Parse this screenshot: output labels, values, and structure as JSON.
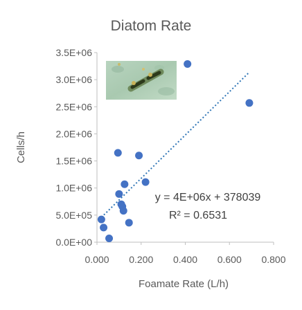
{
  "chart_data": {
    "type": "scatter",
    "title": "Diatom Rate",
    "xlabel": "Foamate Rate (L/h)",
    "ylabel": "Cells/h",
    "xlim": [
      0,
      0.8
    ],
    "ylim": [
      0,
      3500000
    ],
    "x_ticks": [
      "0.000",
      "0.200",
      "0.400",
      "0.600",
      "0.800"
    ],
    "y_ticks": [
      "0.0E+00",
      "5.0E+05",
      "1.0E+06",
      "1.5E+06",
      "2.0E+06",
      "2.5E+06",
      "3.0E+06",
      "3.5E+06"
    ],
    "grid": false,
    "legend": "none",
    "point_color": "#4472C4",
    "trendline_color": "#2E75B6",
    "points": [
      {
        "x": 0.02,
        "y": 420000
      },
      {
        "x": 0.03,
        "y": 270000
      },
      {
        "x": 0.055,
        "y": 70000
      },
      {
        "x": 0.095,
        "y": 1650000
      },
      {
        "x": 0.1,
        "y": 890000
      },
      {
        "x": 0.11,
        "y": 700000
      },
      {
        "x": 0.115,
        "y": 660000
      },
      {
        "x": 0.12,
        "y": 580000
      },
      {
        "x": 0.125,
        "y": 1070000
      },
      {
        "x": 0.145,
        "y": 360000
      },
      {
        "x": 0.19,
        "y": 1600000
      },
      {
        "x": 0.22,
        "y": 1110000
      },
      {
        "x": 0.41,
        "y": 3290000
      },
      {
        "x": 0.69,
        "y": 2570000
      }
    ],
    "trendline": {
      "type": "linear",
      "slope": 4000000,
      "intercept": 378039,
      "x_range": [
        0.02,
        0.69
      ],
      "equation_label": "y = 4E+06x + 378039",
      "r2_label": "R² = 0.6531"
    },
    "inset_image": "diatom-micrograph"
  }
}
